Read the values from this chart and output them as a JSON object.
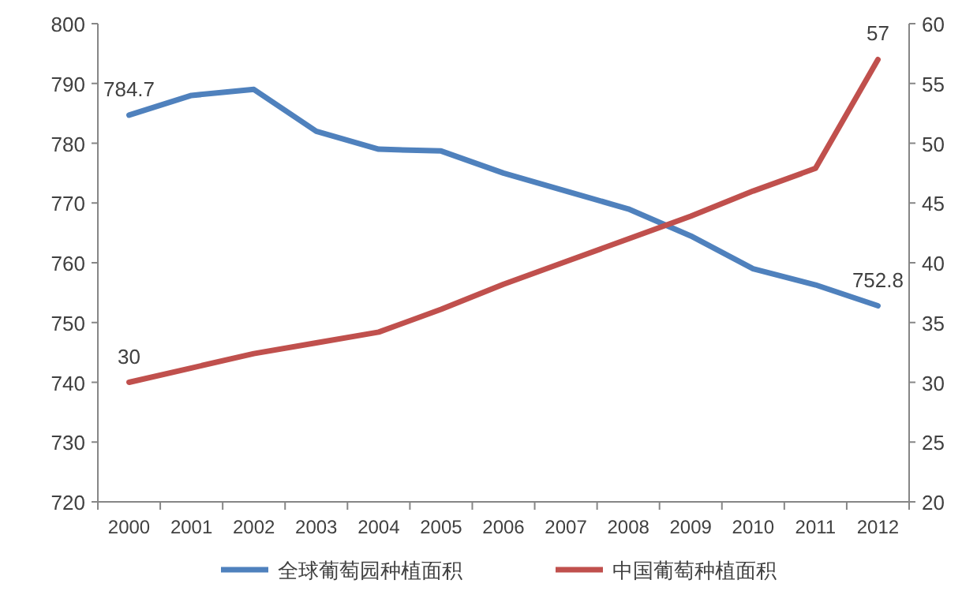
{
  "chart_data": {
    "type": "line",
    "categories": [
      "2000",
      "2001",
      "2002",
      "2003",
      "2004",
      "2005",
      "2006",
      "2007",
      "2008",
      "2009",
      "2010",
      "2011",
      "2012"
    ],
    "series": [
      {
        "name": "全球葡萄园种植面积",
        "color": "#4f81bd",
        "values": [
          784.7,
          788,
          789,
          782,
          779,
          778.7,
          775,
          772,
          769,
          764.5,
          759,
          756.3,
          752.8
        ],
        "value_labels": [
          "784.7",
          null,
          null,
          null,
          null,
          null,
          null,
          null,
          null,
          null,
          null,
          null,
          "752.8"
        ]
      },
      {
        "name": "中国葡萄种植面积",
        "color": "#c0504d",
        "axis": "y2",
        "values": [
          30,
          31.2,
          32.4,
          33.3,
          34.2,
          36.1,
          38.2,
          40.1,
          42,
          43.9,
          46,
          47.9,
          57
        ],
        "value_labels": [
          "30",
          null,
          null,
          null,
          null,
          null,
          null,
          null,
          null,
          null,
          null,
          null,
          "57"
        ]
      }
    ],
    "ylim": [
      720,
      800
    ],
    "yticks": [
      720,
      730,
      740,
      750,
      760,
      770,
      780,
      790,
      800
    ],
    "y2lim": [
      20,
      60
    ],
    "y2ticks": [
      20,
      25,
      30,
      35,
      40,
      45,
      50,
      55,
      60
    ],
    "legend": "bottom",
    "grid": false
  }
}
